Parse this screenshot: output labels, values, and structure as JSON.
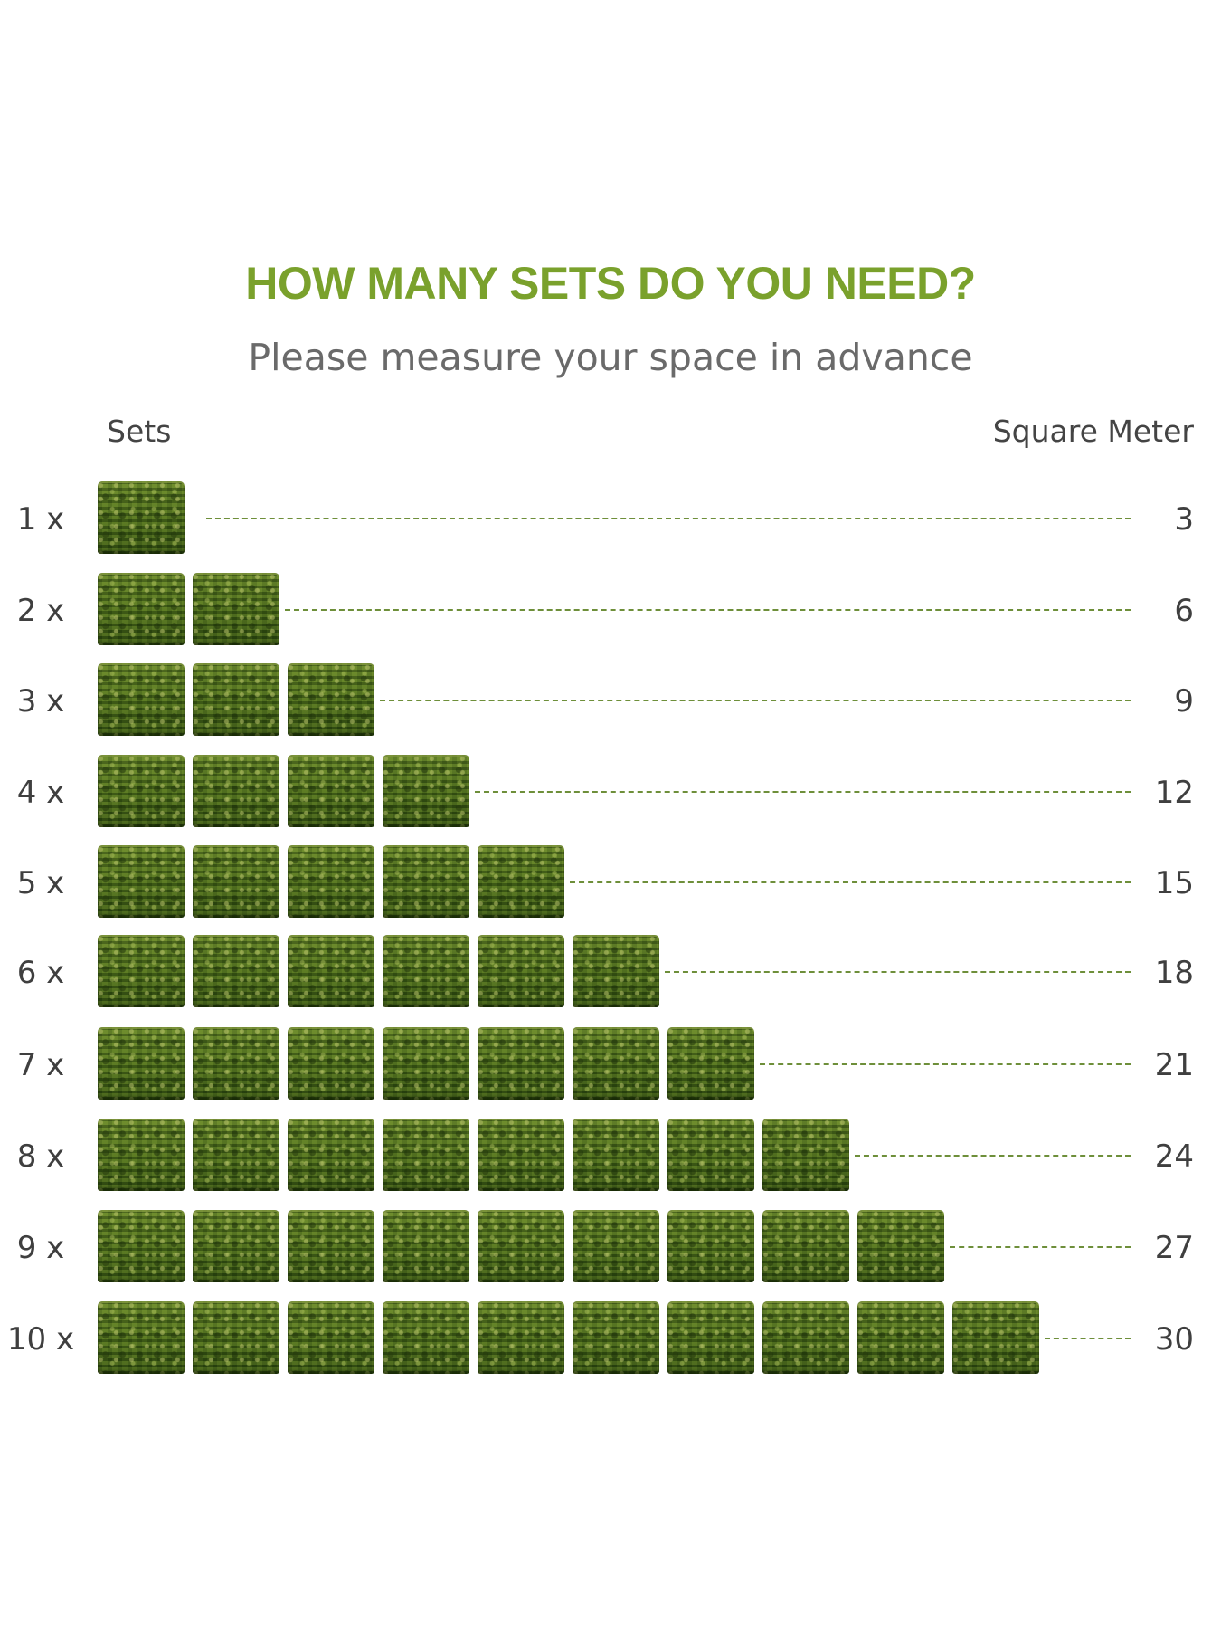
{
  "header": {
    "title": "HOW MANY SETS DO YOU NEED?",
    "subtitle": "Please measure your space in advance"
  },
  "columns": {
    "left": "Sets",
    "right": "Square Meter"
  },
  "tile_icon": "grass-panel-icon",
  "colors": {
    "title": "#7aa12c",
    "leader": "#6e8f3a"
  },
  "rows": [
    {
      "label": "1 x",
      "count": 1,
      "value": "3"
    },
    {
      "label": "2 x",
      "count": 2,
      "value": "6"
    },
    {
      "label": "3 x",
      "count": 3,
      "value": "9"
    },
    {
      "label": "4 x",
      "count": 4,
      "value": "12"
    },
    {
      "label": "5 x",
      "count": 5,
      "value": "15"
    },
    {
      "label": "6 x",
      "count": 6,
      "value": "18"
    },
    {
      "label": "7 x",
      "count": 7,
      "value": "21"
    },
    {
      "label": "8 x",
      "count": 8,
      "value": "24"
    },
    {
      "label": "9 x",
      "count": 9,
      "value": "27"
    },
    {
      "label": "10 x",
      "count": 10,
      "value": "30"
    }
  ]
}
